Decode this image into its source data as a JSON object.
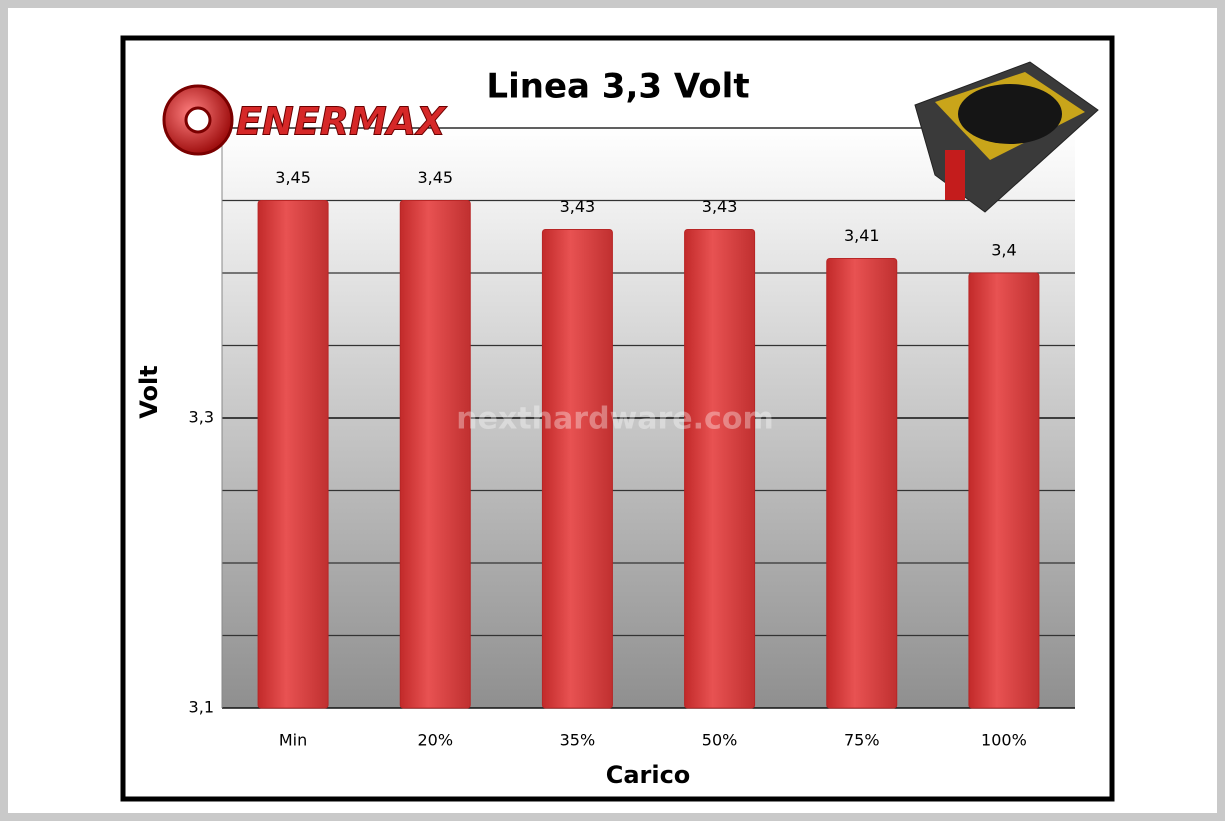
{
  "chart_data": {
    "type": "bar",
    "title": "Linea 3,3 Volt",
    "x_label": "Carico",
    "y_label": "Volt",
    "logo": "ENERMAX",
    "watermark": "nexthardware.com",
    "categories": [
      "Min",
      "20%",
      "35%",
      "50%",
      "75%",
      "100%"
    ],
    "values": [
      3.45,
      3.45,
      3.43,
      3.43,
      3.41,
      3.4
    ],
    "value_labels": [
      "3,45",
      "3,45",
      "3,43",
      "3,43",
      "3,41",
      "3,4"
    ],
    "color": "#d93a3a",
    "ylim": [
      3.1,
      3.5
    ],
    "yticks": [
      {
        "value": 3.1,
        "label": "3,1"
      },
      {
        "value": 3.3,
        "label": "3,3"
      }
    ],
    "minor_yticks": [
      3.15,
      3.2,
      3.25,
      3.35,
      3.4,
      3.45,
      3.5
    ],
    "grid": true
  }
}
